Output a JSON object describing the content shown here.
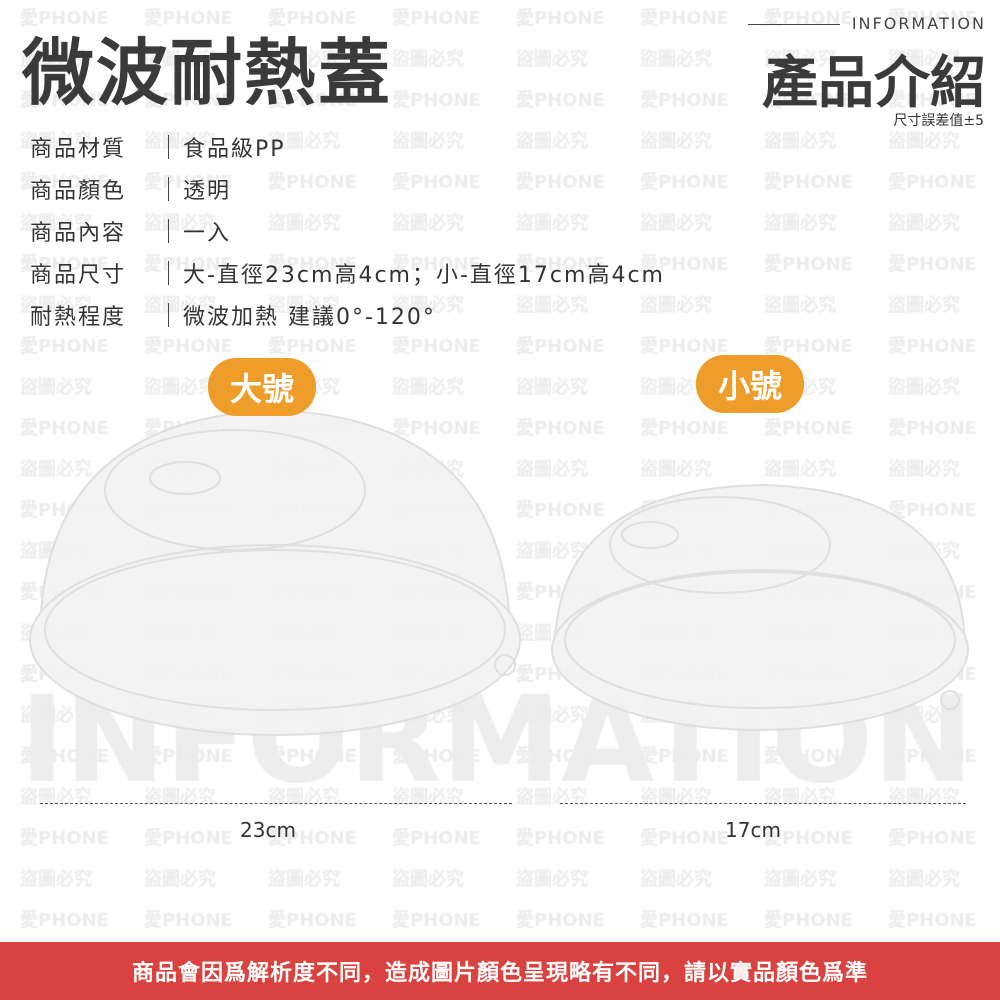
{
  "watermark": {
    "line1": "愛PHONE",
    "line2": "盜圖必究",
    "background_word": "INFORMATION"
  },
  "header": {
    "title": "微波耐熱蓋",
    "info_en": "INFORMATION",
    "info_zh": "產品介紹",
    "tolerance_note": "尺寸誤差值±5"
  },
  "specs": [
    {
      "label": "商品材質",
      "value": "食品級PP"
    },
    {
      "label": "商品顏色",
      "value": "透明"
    },
    {
      "label": "商品內容",
      "value": "一入"
    },
    {
      "label": "商品尺寸",
      "value": "大-直徑23cm高4cm；小-直徑17cm高4cm"
    },
    {
      "label": "耐熱程度",
      "value": "微波加熱 建議0°-120°"
    }
  ],
  "products": [
    {
      "badge": "大號",
      "diameter": "23cm"
    },
    {
      "badge": "小號",
      "diameter": "17cm"
    }
  ],
  "footer": {
    "disclaimer": "商品會因爲解析度不同，造成圖片顏色呈現略有不同，請以實品顏色爲準"
  },
  "colors": {
    "badge": "#ef9d2a",
    "footer": "#d9423e",
    "text": "#333333"
  }
}
